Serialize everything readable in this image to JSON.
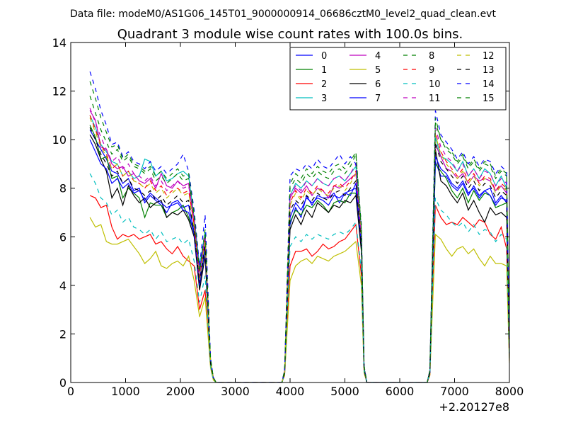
{
  "chart_data": {
    "type": "line",
    "suptitle": "Data file: modeM0/AS1G06_145T01_9000000914_06686cztM0_level2_quad_clean.evt",
    "title": "Quadrant 3 module wise count rates with 100.0s bins.",
    "xlabel": "",
    "ylabel": "",
    "x_offset_label": "+2.20127e8",
    "xlim": [
      0,
      8000
    ],
    "ylim": [
      0,
      14
    ],
    "xticks": [
      "0",
      "1000",
      "2000",
      "3000",
      "4000",
      "5000",
      "6000",
      "7000",
      "8000"
    ],
    "yticks": [
      "0",
      "2",
      "4",
      "6",
      "8",
      "10",
      "12",
      "14"
    ],
    "grid": false,
    "legend_position": "top-right",
    "legend_columns": 4,
    "x": [
      350,
      450,
      550,
      650,
      750,
      850,
      950,
      1050,
      1150,
      1250,
      1350,
      1450,
      1550,
      1650,
      1750,
      1850,
      1950,
      2050,
      2150,
      2250,
      2350,
      2450,
      2550,
      2600,
      2650,
      2700,
      3800,
      3850,
      3900,
      4000,
      4100,
      4200,
      4300,
      4400,
      4500,
      4600,
      4700,
      4800,
      4900,
      5000,
      5100,
      5200,
      5300,
      5350,
      5400,
      5450,
      6450,
      6500,
      6550,
      6650,
      6750,
      6850,
      6950,
      7050,
      7150,
      7250,
      7350,
      7450,
      7550,
      7650,
      7750,
      7850,
      7950,
      8000
    ],
    "series": [
      {
        "name": "0",
        "color": "#0000ff",
        "dash": "solid",
        "values": [
          10.4,
          10.0,
          9.6,
          9.2,
          8.7,
          8.6,
          8.2,
          8.4,
          7.9,
          8.0,
          7.4,
          7.7,
          7.5,
          7.3,
          7.0,
          7.4,
          7.5,
          7.2,
          7.3,
          6.2,
          4.2,
          5.8,
          0.8,
          0.2,
          0.0,
          0.0,
          0.0,
          0.0,
          0.4,
          6.5,
          7.2,
          6.8,
          7.7,
          7.3,
          7.7,
          7.6,
          7.6,
          7.8,
          7.4,
          7.8,
          7.7,
          8.2,
          5.8,
          0.6,
          0.0,
          0.0,
          0.0,
          0.0,
          0.4,
          9.1,
          8.5,
          8.5,
          8.1,
          7.9,
          8.2,
          7.7,
          8.1,
          7.7,
          7.9,
          8.0,
          7.4,
          7.7,
          7.4,
          1.2
        ]
      },
      {
        "name": "1",
        "color": "#008000",
        "dash": "solid",
        "values": [
          10.6,
          10.1,
          9.2,
          9.3,
          8.4,
          8.5,
          7.6,
          8.0,
          7.8,
          7.6,
          6.8,
          7.4,
          7.3,
          7.3,
          6.8,
          7.0,
          7.1,
          7.3,
          6.8,
          6.2,
          3.9,
          5.6,
          0.8,
          0.2,
          0.0,
          0.0,
          0.0,
          0.0,
          0.4,
          6.6,
          7.1,
          6.9,
          7.3,
          7.2,
          7.5,
          7.3,
          7.0,
          7.4,
          7.5,
          7.4,
          7.8,
          7.8,
          5.6,
          0.6,
          0.0,
          0.0,
          0.0,
          0.0,
          0.4,
          9.0,
          8.7,
          8.4,
          7.9,
          7.6,
          8.0,
          7.4,
          7.9,
          7.5,
          7.8,
          7.7,
          7.2,
          7.3,
          7.4,
          1.1
        ]
      },
      {
        "name": "2",
        "color": "#ff0000",
        "dash": "solid",
        "values": [
          7.7,
          7.6,
          7.2,
          7.3,
          6.4,
          5.9,
          6.1,
          6.0,
          6.1,
          5.9,
          6.0,
          6.1,
          5.7,
          5.8,
          5.5,
          5.3,
          5.6,
          5.2,
          5.0,
          4.8,
          3.0,
          3.8,
          0.7,
          0.2,
          0.0,
          0.0,
          0.0,
          0.0,
          0.3,
          4.8,
          5.4,
          5.4,
          5.5,
          5.2,
          5.4,
          5.7,
          5.5,
          5.6,
          5.8,
          5.9,
          6.2,
          6.5,
          4.4,
          0.5,
          0.0,
          0.0,
          0.0,
          0.0,
          0.3,
          7.3,
          6.8,
          6.5,
          6.6,
          6.5,
          6.8,
          6.6,
          6.4,
          6.7,
          6.6,
          6.1,
          5.9,
          6.4,
          5.5,
          0.9
        ]
      },
      {
        "name": "3",
        "color": "#00bfbf",
        "dash": "solid",
        "values": [
          11.0,
          10.5,
          9.8,
          9.5,
          9.1,
          9.0,
          8.5,
          8.7,
          8.4,
          8.5,
          9.2,
          9.1,
          8.5,
          8.7,
          8.3,
          8.4,
          8.6,
          8.7,
          8.5,
          6.8,
          4.8,
          6.2,
          0.9,
          0.2,
          0.0,
          0.0,
          0.0,
          0.0,
          0.4,
          7.7,
          8.2,
          8.0,
          8.3,
          8.1,
          8.4,
          8.2,
          8.1,
          8.4,
          8.5,
          8.3,
          8.6,
          8.9,
          6.1,
          0.6,
          0.0,
          0.0,
          0.0,
          0.0,
          0.5,
          10.1,
          9.3,
          9.2,
          9.0,
          8.7,
          9.1,
          8.5,
          8.8,
          8.4,
          8.8,
          8.6,
          8.1,
          8.5,
          8.0,
          1.3
        ]
      },
      {
        "name": "4",
        "color": "#bf00bf",
        "dash": "solid",
        "values": [
          11.2,
          10.8,
          9.7,
          9.6,
          9.0,
          8.8,
          8.9,
          8.5,
          8.6,
          8.3,
          8.2,
          8.4,
          8.0,
          8.6,
          8.1,
          8.0,
          8.3,
          8.1,
          8.2,
          6.5,
          4.6,
          6.0,
          0.9,
          0.2,
          0.0,
          0.0,
          0.0,
          0.0,
          0.4,
          7.6,
          8.0,
          7.8,
          8.1,
          7.7,
          8.0,
          7.9,
          7.6,
          8.1,
          8.0,
          8.2,
          8.4,
          8.6,
          6.0,
          0.6,
          0.0,
          0.0,
          0.0,
          0.0,
          0.5,
          9.8,
          9.3,
          8.8,
          8.7,
          8.4,
          8.6,
          8.2,
          8.5,
          8.3,
          8.4,
          8.3,
          7.9,
          8.1,
          7.8,
          1.2
        ]
      },
      {
        "name": "5",
        "color": "#bfbf00",
        "dash": "solid",
        "values": [
          6.8,
          6.4,
          6.5,
          5.8,
          5.7,
          5.7,
          5.8,
          5.9,
          5.6,
          5.3,
          4.9,
          5.1,
          5.4,
          4.8,
          4.7,
          4.9,
          5.0,
          4.8,
          5.2,
          4.2,
          2.7,
          3.5,
          0.6,
          0.1,
          0.0,
          0.0,
          0.0,
          0.0,
          0.3,
          4.2,
          4.8,
          5.0,
          5.1,
          4.9,
          5.2,
          5.1,
          5.0,
          5.2,
          5.3,
          5.4,
          5.6,
          5.8,
          4.0,
          0.4,
          0.0,
          0.0,
          0.0,
          0.0,
          0.3,
          6.1,
          5.9,
          5.5,
          5.2,
          5.5,
          5.6,
          5.3,
          5.5,
          5.1,
          4.8,
          5.2,
          4.9,
          4.9,
          4.8,
          0.8
        ]
      },
      {
        "name": "6",
        "color": "#000000",
        "dash": "solid",
        "values": [
          10.2,
          9.8,
          9.2,
          8.7,
          7.6,
          8.0,
          7.3,
          8.1,
          7.7,
          7.4,
          7.6,
          7.2,
          7.4,
          7.5,
          6.8,
          7.0,
          6.9,
          7.1,
          6.7,
          6.0,
          3.8,
          5.2,
          0.8,
          0.2,
          0.0,
          0.0,
          0.0,
          0.0,
          0.4,
          6.3,
          6.9,
          6.5,
          7.1,
          6.8,
          7.4,
          7.2,
          7.0,
          7.3,
          7.2,
          7.5,
          7.4,
          7.7,
          5.4,
          0.5,
          0.0,
          0.0,
          0.0,
          0.0,
          0.4,
          9.6,
          8.3,
          8.1,
          7.7,
          7.4,
          7.8,
          7.1,
          7.5,
          7.0,
          6.6,
          7.2,
          6.9,
          7.0,
          6.8,
          1.0
        ]
      },
      {
        "name": "7",
        "color": "#0000ff",
        "dash": "solid",
        "values": [
          10.0,
          9.5,
          9.0,
          8.8,
          8.2,
          8.4,
          8.0,
          8.2,
          7.8,
          7.9,
          7.5,
          7.8,
          7.6,
          7.4,
          7.2,
          7.3,
          7.4,
          7.1,
          7.0,
          6.1,
          4.0,
          5.5,
          0.8,
          0.2,
          0.0,
          0.0,
          0.0,
          0.0,
          0.4,
          6.8,
          7.4,
          7.1,
          7.6,
          7.4,
          7.6,
          7.5,
          7.3,
          7.7,
          7.6,
          7.8,
          7.9,
          8.0,
          5.7,
          0.6,
          0.0,
          0.0,
          0.0,
          0.0,
          0.4,
          9.3,
          8.8,
          8.6,
          8.2,
          8.0,
          8.3,
          7.8,
          8.0,
          7.6,
          7.9,
          7.7,
          7.3,
          7.6,
          7.5,
          1.2
        ]
      },
      {
        "name": "8",
        "color": "#008000",
        "dash": "dashed",
        "values": [
          11.8,
          11.1,
          10.4,
          9.9,
          9.4,
          9.6,
          9.1,
          9.3,
          8.9,
          8.8,
          8.6,
          8.8,
          8.3,
          8.5,
          8.2,
          8.4,
          8.6,
          8.3,
          8.4,
          6.8,
          4.5,
          6.1,
          0.9,
          0.2,
          0.0,
          0.0,
          0.0,
          0.0,
          0.5,
          8.0,
          8.4,
          8.2,
          8.6,
          8.4,
          8.7,
          8.5,
          8.4,
          8.7,
          8.8,
          8.6,
          8.9,
          9.4,
          6.3,
          0.6,
          0.0,
          0.0,
          0.0,
          0.0,
          0.5,
          10.7,
          10.0,
          9.6,
          9.4,
          9.0,
          9.3,
          8.8,
          9.1,
          8.7,
          9.0,
          8.9,
          8.4,
          8.7,
          8.5,
          1.4
        ]
      },
      {
        "name": "9",
        "color": "#ff0000",
        "dash": "dashed",
        "values": [
          11.0,
          10.4,
          9.8,
          9.4,
          8.8,
          9.0,
          8.5,
          8.7,
          8.3,
          8.2,
          8.0,
          8.3,
          7.9,
          8.1,
          7.7,
          7.9,
          8.0,
          7.8,
          7.9,
          6.5,
          4.3,
          5.9,
          0.9,
          0.2,
          0.0,
          0.0,
          0.0,
          0.0,
          0.4,
          7.4,
          7.9,
          7.6,
          8.0,
          7.8,
          8.1,
          7.9,
          7.8,
          8.1,
          8.2,
          8.0,
          8.3,
          8.7,
          6.0,
          0.6,
          0.0,
          0.0,
          0.0,
          0.0,
          0.5,
          10.3,
          9.5,
          9.1,
          8.8,
          8.5,
          8.8,
          8.3,
          8.6,
          8.2,
          8.5,
          8.4,
          7.9,
          8.2,
          8.0,
          1.3
        ]
      },
      {
        "name": "10",
        "color": "#00bfbf",
        "dash": "dashed",
        "values": [
          8.6,
          8.2,
          7.6,
          7.4,
          6.9,
          7.1,
          6.6,
          6.8,
          6.4,
          6.3,
          6.1,
          6.3,
          5.9,
          6.2,
          5.8,
          5.9,
          6.0,
          5.7,
          5.9,
          5.0,
          3.3,
          4.4,
          0.7,
          0.1,
          0.0,
          0.0,
          0.0,
          0.0,
          0.3,
          5.6,
          6.0,
          5.8,
          6.1,
          5.9,
          6.1,
          6.0,
          5.9,
          6.1,
          6.2,
          6.1,
          6.3,
          6.6,
          4.6,
          0.5,
          0.0,
          0.0,
          0.0,
          0.0,
          0.4,
          7.6,
          7.1,
          6.9,
          6.6,
          6.4,
          6.6,
          6.2,
          6.5,
          6.1,
          6.3,
          6.2,
          5.8,
          6.1,
          5.9,
          1.0
        ]
      },
      {
        "name": "11",
        "color": "#bf00bf",
        "dash": "dashed",
        "values": [
          11.3,
          10.7,
          10.1,
          9.6,
          9.1,
          9.3,
          8.8,
          9.0,
          8.6,
          8.5,
          8.3,
          8.5,
          8.1,
          8.3,
          7.9,
          8.1,
          8.3,
          8.0,
          8.1,
          6.7,
          4.4,
          6.0,
          0.9,
          0.2,
          0.0,
          0.0,
          0.0,
          0.0,
          0.5,
          7.7,
          8.1,
          7.9,
          8.3,
          8.1,
          8.4,
          8.2,
          8.1,
          8.4,
          8.5,
          8.3,
          8.6,
          9.0,
          6.1,
          0.6,
          0.0,
          0.0,
          0.0,
          0.0,
          0.5,
          10.5,
          9.7,
          9.3,
          9.1,
          8.7,
          9.0,
          8.5,
          8.8,
          8.4,
          8.7,
          8.6,
          8.1,
          8.4,
          8.2,
          1.3
        ]
      },
      {
        "name": "12",
        "color": "#bfbf00",
        "dash": "dashed",
        "values": [
          10.9,
          10.3,
          9.7,
          9.3,
          8.8,
          9.0,
          8.5,
          8.7,
          8.3,
          8.2,
          8.0,
          8.2,
          7.8,
          8.0,
          7.6,
          7.8,
          8.0,
          7.7,
          7.8,
          6.4,
          4.2,
          5.8,
          0.9,
          0.2,
          0.0,
          0.0,
          0.0,
          0.0,
          0.4,
          7.3,
          7.8,
          7.5,
          7.9,
          7.7,
          8.0,
          7.8,
          7.7,
          8.0,
          8.1,
          7.9,
          8.2,
          8.6,
          5.9,
          0.6,
          0.0,
          0.0,
          0.0,
          0.0,
          0.5,
          10.2,
          9.4,
          9.0,
          8.7,
          8.4,
          8.7,
          8.2,
          8.5,
          8.1,
          8.4,
          8.3,
          7.8,
          8.1,
          7.9,
          1.2
        ]
      },
      {
        "name": "13",
        "color": "#000000",
        "dash": "dashed",
        "values": [
          10.5,
          10.0,
          9.4,
          9.0,
          8.5,
          8.7,
          8.2,
          8.4,
          8.0,
          7.9,
          7.7,
          7.9,
          7.5,
          7.7,
          7.3,
          7.5,
          7.7,
          7.4,
          7.5,
          6.2,
          4.1,
          5.6,
          0.8,
          0.2,
          0.0,
          0.0,
          0.0,
          0.0,
          0.4,
          7.1,
          7.5,
          7.3,
          7.7,
          7.5,
          7.8,
          7.6,
          7.5,
          7.8,
          7.9,
          7.7,
          8.0,
          8.3,
          5.7,
          0.6,
          0.0,
          0.0,
          0.0,
          0.0,
          0.4,
          9.9,
          9.1,
          8.8,
          8.5,
          8.2,
          8.5,
          8.0,
          8.3,
          7.9,
          8.2,
          8.1,
          7.6,
          7.9,
          7.7,
          1.2
        ]
      },
      {
        "name": "14",
        "color": "#0000ff",
        "dash": "dashed",
        "values": [
          12.8,
          12.1,
          11.2,
          10.6,
          9.8,
          9.9,
          9.3,
          9.5,
          9.1,
          9.0,
          8.8,
          9.1,
          8.7,
          8.9,
          8.6,
          8.8,
          9.0,
          9.4,
          8.7,
          7.1,
          4.8,
          6.9,
          1.0,
          0.2,
          0.0,
          0.0,
          0.0,
          0.0,
          0.5,
          8.5,
          8.8,
          8.7,
          9.0,
          8.8,
          9.2,
          8.9,
          8.8,
          9.1,
          9.4,
          9.0,
          9.3,
          9.0,
          6.5,
          0.7,
          0.0,
          0.0,
          0.0,
          0.0,
          0.5,
          11.2,
          10.2,
          9.9,
          9.6,
          9.2,
          9.5,
          9.0,
          9.3,
          8.9,
          9.2,
          9.1,
          8.6,
          8.9,
          8.7,
          1.5
        ]
      },
      {
        "name": "15",
        "color": "#008000",
        "dash": "dashed",
        "values": [
          12.4,
          11.7,
          10.9,
          10.3,
          9.7,
          9.8,
          9.2,
          9.4,
          9.0,
          8.9,
          8.7,
          8.9,
          8.5,
          8.7,
          8.4,
          8.6,
          8.8,
          8.5,
          8.6,
          6.9,
          4.6,
          6.3,
          1.0,
          0.2,
          0.0,
          0.0,
          0.0,
          0.0,
          0.5,
          8.2,
          8.6,
          8.4,
          8.8,
          8.6,
          8.9,
          8.7,
          8.6,
          8.9,
          9.0,
          8.8,
          9.1,
          9.5,
          6.4,
          0.7,
          0.0,
          0.0,
          0.0,
          0.0,
          0.5,
          10.9,
          10.0,
          9.7,
          9.5,
          9.1,
          9.4,
          8.9,
          9.2,
          8.8,
          9.1,
          9.0,
          8.5,
          8.8,
          8.6,
          1.4
        ]
      }
    ]
  }
}
